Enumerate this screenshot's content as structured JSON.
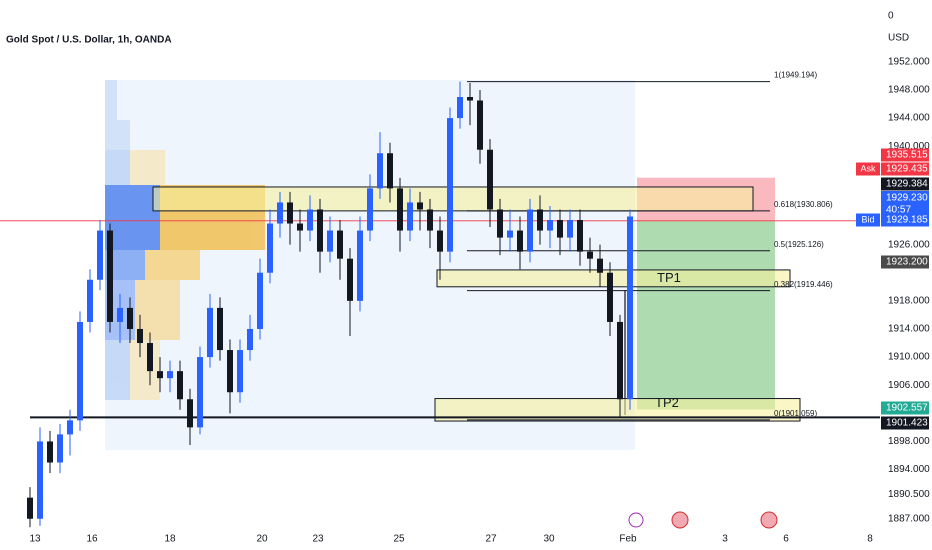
{
  "chart_data": {
    "type": "candlestick",
    "title": "Gold Spot / U.S. Dollar, 1h, OANDA",
    "currency": "USD",
    "corner_label": "0",
    "up_color": "#2962ff",
    "down_color": "#131722",
    "xlim": [
      -17.5,
      422.5
    ],
    "ylim": [
      1885.4,
      1960.8
    ],
    "xticks": [
      {
        "value": 0,
        "label": "13"
      },
      {
        "value": 28.5,
        "label": "16"
      },
      {
        "value": 67.5,
        "label": "18"
      },
      {
        "value": 113.5,
        "label": "20"
      },
      {
        "value": 141.5,
        "label": "23"
      },
      {
        "value": 182,
        "label": "25"
      },
      {
        "value": 228,
        "label": "27"
      },
      {
        "value": 257,
        "label": "30"
      },
      {
        "value": 296.5,
        "label": "Feb"
      },
      {
        "value": 345,
        "label": "3"
      },
      {
        "value": 375.5,
        "label": "6"
      },
      {
        "value": 417.5,
        "label": "8"
      }
    ],
    "yticks": [
      {
        "value": 1952,
        "label": "1952.000"
      },
      {
        "value": 1948,
        "label": "1948.000"
      },
      {
        "value": 1944,
        "label": "1944.000"
      },
      {
        "value": 1940,
        "label": "1940.000"
      },
      {
        "value": 1926,
        "label": "1926.000"
      },
      {
        "value": 1918,
        "label": "1918.000"
      },
      {
        "value": 1914,
        "label": "1914.000"
      },
      {
        "value": 1910,
        "label": "1910.000"
      },
      {
        "value": 1906,
        "label": "1906.000"
      },
      {
        "value": 1898,
        "label": "1898.000"
      },
      {
        "value": 1894,
        "label": "1894.000"
      },
      {
        "value": 1890.5,
        "label": "1890.500"
      },
      {
        "value": 1887,
        "label": "1887.000"
      }
    ],
    "x": [
      -2.5,
      2.5,
      7.5,
      12.5,
      17.5,
      22.5,
      27.5,
      32.5,
      37.5,
      42.5,
      47.5,
      52.5,
      57.5,
      62.5,
      67.5,
      72.5,
      77.5,
      82.5,
      87.5,
      92.5,
      97.5,
      102.5,
      107.5,
      112.5,
      117.5,
      122.5,
      127.5,
      132.5,
      137.5,
      142.5,
      147.5,
      152.5,
      157.5,
      162.5,
      167.5,
      172.5,
      177.5,
      182.5,
      187.5,
      192.5,
      197.5,
      202.5,
      207.5,
      212.5,
      217.5,
      222.5,
      227.5,
      232.5,
      237.5,
      242.5,
      247.5,
      252.5,
      257.5,
      262.5,
      267.5,
      272.5,
      277.5,
      282.5,
      287.5,
      292.5,
      297.5
    ],
    "open": [
      1890,
      1887,
      1898,
      1895,
      1899,
      1901,
      1915,
      1921,
      1928,
      1915,
      1917,
      1914,
      1912,
      1908,
      1907,
      1908,
      1904,
      1900,
      1910,
      1917,
      1911,
      1905,
      1911,
      1914,
      1922,
      1929,
      1932,
      1929,
      1928,
      1931,
      1925,
      1928,
      1924,
      1918,
      1928,
      1934,
      1939,
      1934,
      1928,
      1932,
      1931,
      1928,
      1925,
      1944,
      1947,
      1946.5,
      1939.5,
      1931,
      1927,
      1928,
      1925,
      1931,
      1928,
      1929.5,
      1927,
      1929.5,
      1925,
      1924,
      1922,
      1915,
      1904
    ],
    "high": [
      1891.5,
      1900,
      1899.5,
      1900.5,
      1902.5,
      1916.5,
      1922.5,
      1929.5,
      1929,
      1919,
      1918.5,
      1916,
      1913.5,
      1910,
      1909.5,
      1909.5,
      1905.5,
      1911.5,
      1919,
      1918.5,
      1912.5,
      1912.5,
      1916,
      1924,
      1931,
      1933.5,
      1933.5,
      1931,
      1933,
      1932.5,
      1930,
      1929.5,
      1925.5,
      1930,
      1936,
      1942,
      1940.5,
      1935.5,
      1934,
      1933.5,
      1932.5,
      1930,
      1945.5,
      1949.2,
      1949,
      1948,
      1941,
      1932.5,
      1931,
      1930,
      1932.5,
      1933,
      1931.5,
      1931,
      1931,
      1931,
      1927,
      1926,
      1923.5,
      1916,
      1931
    ],
    "low": [
      1885.8,
      1886,
      1893.5,
      1893.5,
      1896,
      1899.5,
      1913.5,
      1919.5,
      1913.5,
      1912,
      1912,
      1910,
      1906,
      1905,
      1905,
      1902.5,
      1897.5,
      1899,
      1908.5,
      1909.5,
      1902,
      1903.5,
      1909.5,
      1912.5,
      1920.5,
      1927,
      1926,
      1925,
      1926.5,
      1922,
      1923.5,
      1921,
      1913,
      1916.5,
      1926.5,
      1932.5,
      1932,
      1925,
      1926.5,
      1928,
      1925.5,
      1921,
      1923.5,
      1942.5,
      1943,
      1937.5,
      1928.5,
      1924.5,
      1925,
      1922.5,
      1923.5,
      1926,
      1925.5,
      1924.5,
      1925,
      1923,
      1922,
      1920,
      1913,
      1901.5,
      1902.5
    ],
    "close": [
      1887,
      1898,
      1895,
      1899,
      1901,
      1915,
      1921,
      1928,
      1915,
      1917,
      1914,
      1912,
      1908,
      1907,
      1908,
      1904,
      1900,
      1910,
      1917,
      1911,
      1905,
      1911,
      1914,
      1922,
      1929,
      1932,
      1929,
      1928,
      1931,
      1925,
      1928,
      1924,
      1918,
      1928,
      1934,
      1939,
      1934,
      1928,
      1932,
      1931,
      1928,
      1925,
      1944,
      1947,
      1946.5,
      1939.5,
      1931,
      1927,
      1928,
      1925,
      1931,
      1928,
      1929.5,
      1927,
      1929.5,
      1925,
      1924,
      1922,
      1915,
      1904,
      1930
    ],
    "fib_levels": [
      {
        "value": 1949.194,
        "label": "1(1949.194)"
      },
      {
        "value": 1930.806,
        "label": "0.618(1930.806)"
      },
      {
        "value": 1925.126,
        "label": "0.5(1925.126)"
      },
      {
        "value": 1919.446,
        "label": "0.382(1919.446)"
      },
      {
        "value": 1901.059,
        "label": "0(1901.059)"
      }
    ],
    "fib_x": [
      216,
      367.5
    ],
    "zones": [
      {
        "x": [
          59,
          359
        ],
        "top": 1934.2,
        "bottom": 1930.8
      },
      {
        "x": [
          201,
          377.5
        ],
        "top": 1922.4,
        "bottom": 1920,
        "label": "TP1"
      },
      {
        "x": [
          200,
          382.5
        ],
        "top": 1904.1,
        "bottom": 1900.9,
        "label": "TP2"
      }
    ],
    "position": {
      "x": [
        301,
        370
      ],
      "stop": 1935.515,
      "entry": 1929.435,
      "target": 1902.557
    },
    "current_price_line": 1929.384,
    "support_line": 1901.423,
    "price_labels": [
      {
        "value": 1935.515,
        "label": "1935.515",
        "color": "#f23645"
      },
      {
        "value": 1929.435,
        "label": "1929.435",
        "color": "#f23645",
        "tag": "Ask"
      },
      {
        "value": 1929.384,
        "label": "1929.384",
        "color": "#131722"
      },
      {
        "value": 1929.23,
        "label": "1929.230",
        "color": "#2962ff",
        "sub": "40:57"
      },
      {
        "value": 1929.185,
        "label": "1929.185",
        "color": "#2962ff",
        "tag": "Bid"
      },
      {
        "value": 1923.2,
        "label": "1923.200",
        "color": "#4a4a4a"
      },
      {
        "value": 1902.557,
        "label": "1902.557",
        "color": "#22ab94"
      },
      {
        "value": 1901.423,
        "label": "1901.423",
        "color": "#131722"
      }
    ]
  }
}
